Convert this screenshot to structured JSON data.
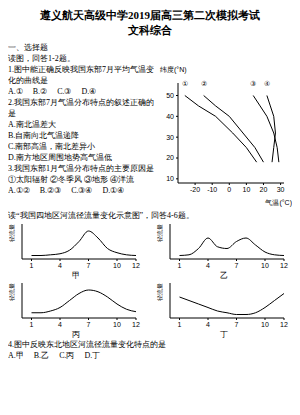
{
  "header": {
    "title": "遵义航天高级中学2019届高三第二次模拟考试",
    "subtitle": "文科综合"
  },
  "section": "一、选择题",
  "intro1": "读图，回答1-2题。",
  "q1": {
    "stem": "1.图中能正确反映我国东部7月平均气温变化的曲线是",
    "options": [
      "A.①",
      "B.②",
      "C.③",
      "D.④"
    ]
  },
  "q2": {
    "stem": "2.我国东部7月气温分布特点的叙述正确的是",
    "options": [
      "A.南北温差大",
      "B.自南向北气温递降",
      "C.南部高温，南北差异小",
      "D.南方地区周围地势高气温低"
    ]
  },
  "q3": {
    "stem": "3.我国东部1月气温分布特点的主要原因是",
    "items": "①太阳辐射 ②冬季风 ③地形 ④洋流",
    "options": [
      "A.①②",
      "B.②③",
      "C.③④",
      "D.①④"
    ]
  },
  "intro2": "读“我国四地区河流径流量变化示意图”，回答4-6题。",
  "q4": {
    "stem": "4.图中反映东北地区河流径流量变化特点的是",
    "options": [
      "A.甲",
      "B.乙",
      "C.丙",
      "D.丁"
    ]
  },
  "chart_data": [
    {
      "type": "line",
      "x_label": "气温(°C)",
      "y_label": "纬度(°N)",
      "xlim": [
        -30,
        32
      ],
      "xticks": [
        -20,
        -10,
        0,
        10,
        20,
        30
      ],
      "ylim": [
        8,
        56
      ],
      "yticks": [
        10,
        20,
        30,
        40,
        50
      ],
      "series": [
        {
          "name": "①",
          "color": "#000000",
          "x": [
            -26,
            -18,
            -8,
            2,
            10,
            16
          ],
          "y": [
            50,
            45,
            40,
            32,
            25,
            18
          ]
        },
        {
          "name": "②",
          "color": "#000000",
          "x": [
            -15,
            -8,
            0,
            8,
            15,
            20
          ],
          "y": [
            50,
            45,
            40,
            32,
            25,
            18
          ]
        },
        {
          "name": "③",
          "color": "#000000",
          "x": [
            14,
            18,
            22,
            26,
            28,
            29
          ],
          "y": [
            50,
            45,
            40,
            32,
            25,
            18
          ]
        },
        {
          "name": "④",
          "color": "#000000",
          "x": [
            22,
            24,
            26,
            27,
            26,
            25
          ],
          "y": [
            50,
            45,
            40,
            32,
            25,
            18
          ]
        }
      ]
    },
    {
      "type": "line",
      "title": "甲",
      "y_label": "径流量",
      "x": [
        1,
        2,
        3,
        4,
        5,
        6,
        7,
        8,
        9,
        10,
        11,
        12
      ],
      "values": [
        1,
        1,
        1.2,
        1.5,
        2.5,
        5,
        8,
        6,
        3,
        1.8,
        1.2,
        1
      ],
      "xlim": [
        0,
        12
      ],
      "xticks": [
        1,
        4,
        7,
        10,
        12
      ],
      "ylim": [
        0,
        10
      ],
      "tick_labels": "x",
      "color": "#000000"
    },
    {
      "type": "line",
      "title": "乙",
      "y_label": "径流量",
      "x": [
        1,
        2,
        3,
        4,
        5,
        6,
        7,
        8,
        9,
        10,
        11,
        12
      ],
      "values": [
        1,
        1.2,
        3,
        6,
        3.5,
        3,
        5,
        6,
        4,
        2,
        1.2,
        1
      ],
      "xlim": [
        0,
        12
      ],
      "xticks": [
        1,
        4,
        7,
        10,
        12
      ],
      "ylim": [
        0,
        10
      ],
      "tick_labels": "x",
      "color": "#000000"
    },
    {
      "type": "line",
      "title": "丙",
      "y_label": "径流量",
      "x": [
        1,
        2,
        3,
        4,
        5,
        6,
        7,
        8,
        9,
        10,
        11,
        12
      ],
      "values": [
        1.5,
        1.5,
        2,
        3,
        5,
        7,
        8,
        7.5,
        6,
        4,
        2.5,
        1.8
      ],
      "xlim": [
        0,
        12
      ],
      "xticks": [
        1,
        4,
        7,
        10,
        12
      ],
      "ylim": [
        0,
        10
      ],
      "tick_labels": "x",
      "color": "#000000"
    },
    {
      "type": "line",
      "title": "丁",
      "y_label": "径流量",
      "x": [
        1,
        2,
        3,
        4,
        5,
        6,
        7,
        8,
        9,
        10,
        11,
        12
      ],
      "values": [
        6,
        5,
        4,
        3,
        2,
        1.5,
        1,
        1,
        1.5,
        3,
        5,
        7
      ],
      "xlim": [
        0,
        12
      ],
      "xticks": [
        1,
        4,
        7,
        10,
        12
      ],
      "ylim": [
        0,
        10
      ],
      "tick_labels": "x",
      "color": "#000000"
    }
  ]
}
